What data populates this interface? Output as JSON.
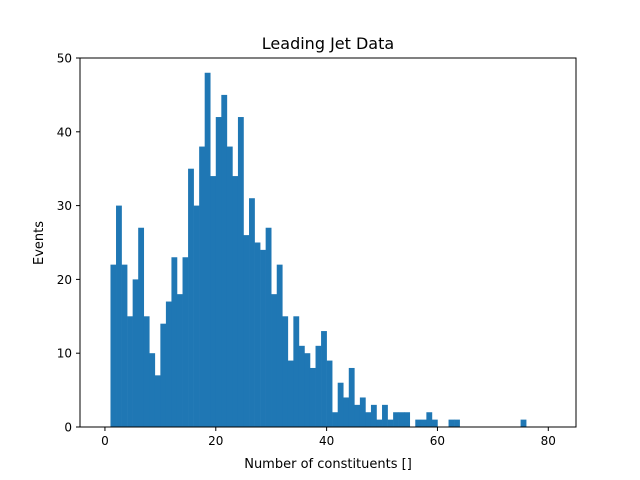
{
  "chart_data": {
    "type": "bar",
    "title": "Leading Jet Data",
    "xlabel": "Number of constituents []",
    "ylabel": "Events",
    "xlim": [
      -4.5,
      85
    ],
    "ylim": [
      0,
      50
    ],
    "xticks": [
      "0",
      "20",
      "40",
      "60",
      "80"
    ],
    "yticks": [
      "0",
      "10",
      "20",
      "30",
      "40",
      "50"
    ],
    "grid": false,
    "bar_color": "#1f77b4",
    "bin_width": 1,
    "x": [
      1,
      2,
      3,
      4,
      5,
      6,
      7,
      8,
      9,
      10,
      11,
      12,
      13,
      14,
      15,
      16,
      17,
      18,
      19,
      20,
      21,
      22,
      23,
      24,
      25,
      26,
      27,
      28,
      29,
      30,
      31,
      32,
      33,
      34,
      35,
      36,
      37,
      38,
      39,
      40,
      41,
      42,
      43,
      44,
      45,
      46,
      47,
      48,
      49,
      50,
      51,
      52,
      53,
      54,
      55,
      56,
      57,
      58,
      59,
      60,
      61,
      62,
      63,
      64,
      65,
      66,
      67,
      68,
      69,
      70,
      71,
      72,
      73,
      74,
      75,
      76,
      77,
      78,
      79,
      80
    ],
    "values": [
      22,
      30,
      22,
      15,
      20,
      27,
      15,
      10,
      7,
      14,
      17,
      23,
      18,
      23,
      35,
      30,
      38,
      48,
      34,
      42,
      45,
      38,
      34,
      42,
      26,
      31,
      25,
      24,
      27,
      18,
      22,
      15,
      9,
      15,
      11,
      10,
      8,
      11,
      13,
      9,
      2,
      6,
      4,
      8,
      3,
      4,
      2,
      3,
      1,
      3,
      1,
      2,
      2,
      2,
      0,
      1,
      1,
      2,
      1,
      0,
      0,
      1,
      1,
      0,
      0,
      0,
      0,
      0,
      0,
      0,
      0,
      0,
      0,
      0,
      1,
      0,
      0,
      0,
      0,
      0
    ]
  }
}
